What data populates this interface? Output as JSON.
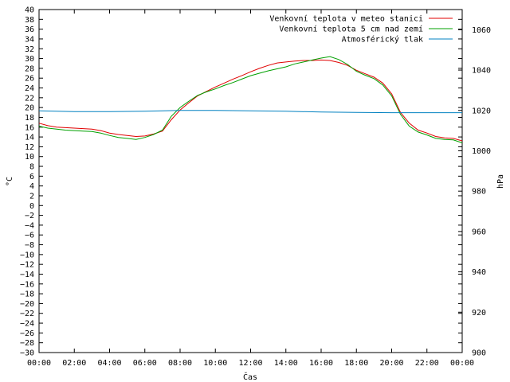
{
  "chart_data": {
    "type": "line",
    "xlabel": "Čas",
    "ylabel_left": "°C",
    "ylabel_right": "hPa",
    "x_ticks": [
      "00:00",
      "02:00",
      "04:00",
      "06:00",
      "08:00",
      "10:00",
      "12:00",
      "14:00",
      "16:00",
      "18:00",
      "20:00",
      "22:00",
      "00:00"
    ],
    "x_hours": [
      0,
      24
    ],
    "ylim_left": [
      -30,
      40
    ],
    "ylim_right": [
      900,
      1070
    ],
    "yticks_left_step": 2,
    "yticks_right_step": 20,
    "grid": false,
    "legend_position": "top-right",
    "series": [
      {
        "name": "Venkovní teplota v meteo stanici",
        "axis": "left",
        "color": "#e00000",
        "x": [
          0,
          0.5,
          1,
          1.5,
          2,
          2.5,
          3,
          3.5,
          4,
          4.5,
          5,
          5.5,
          6,
          6.5,
          7,
          7.5,
          8,
          8.5,
          9,
          9.5,
          10,
          10.5,
          11,
          11.5,
          12,
          12.5,
          13,
          13.5,
          14,
          14.5,
          15,
          15.5,
          16,
          16.5,
          17,
          17.5,
          18,
          18.5,
          19,
          19.5,
          20,
          20.5,
          21,
          21.5,
          22,
          22.5,
          23,
          23.5,
          24
        ],
        "values": [
          16.8,
          16.3,
          16.0,
          15.9,
          15.8,
          15.7,
          15.6,
          15.3,
          14.8,
          14.5,
          14.3,
          14.1,
          14.2,
          14.6,
          15.2,
          17.5,
          19.5,
          21.0,
          22.4,
          23.3,
          24.2,
          25.0,
          25.8,
          26.5,
          27.3,
          28.0,
          28.6,
          29.1,
          29.3,
          29.5,
          29.6,
          29.6,
          29.7,
          29.6,
          29.2,
          28.6,
          27.6,
          26.9,
          26.2,
          25.0,
          22.8,
          19.0,
          16.8,
          15.4,
          14.8,
          14.1,
          13.8,
          13.7,
          13.2
        ]
      },
      {
        "name": "Venkovní teplota 5 cm nad zemí",
        "axis": "left",
        "color": "#00a000",
        "x": [
          0,
          0.5,
          1,
          1.5,
          2,
          2.5,
          3,
          3.5,
          4,
          4.5,
          5,
          5.5,
          6,
          6.5,
          7,
          7.5,
          8,
          8.5,
          9,
          9.5,
          10,
          10.5,
          11,
          11.5,
          12,
          12.5,
          13,
          13.5,
          14,
          14.5,
          15,
          15.5,
          16,
          16.5,
          17,
          17.5,
          18,
          18.5,
          19,
          19.5,
          20,
          20.5,
          21,
          21.5,
          22,
          22.5,
          23,
          23.5,
          24
        ],
        "values": [
          16.2,
          15.8,
          15.6,
          15.4,
          15.3,
          15.2,
          15.1,
          14.8,
          14.3,
          13.9,
          13.7,
          13.5,
          13.9,
          14.5,
          15.4,
          18.2,
          20.0,
          21.3,
          22.5,
          23.2,
          23.8,
          24.5,
          25.1,
          25.8,
          26.5,
          27.0,
          27.5,
          27.9,
          28.3,
          28.9,
          29.3,
          29.7,
          30.1,
          30.4,
          29.8,
          28.8,
          27.4,
          26.6,
          25.9,
          24.6,
          22.4,
          18.6,
          16.2,
          15.0,
          14.4,
          13.7,
          13.5,
          13.4,
          12.8
        ]
      },
      {
        "name": "Atmosférický tlak",
        "axis": "right",
        "color": "#0080c0",
        "x": [
          0,
          2,
          4,
          6,
          8,
          10,
          12,
          14,
          16,
          18,
          20,
          22,
          24
        ],
        "values": [
          1019.8,
          1019.4,
          1019.4,
          1019.6,
          1020.0,
          1020.0,
          1019.8,
          1019.6,
          1019.2,
          1019.0,
          1018.9,
          1018.9,
          1018.9
        ]
      }
    ]
  }
}
